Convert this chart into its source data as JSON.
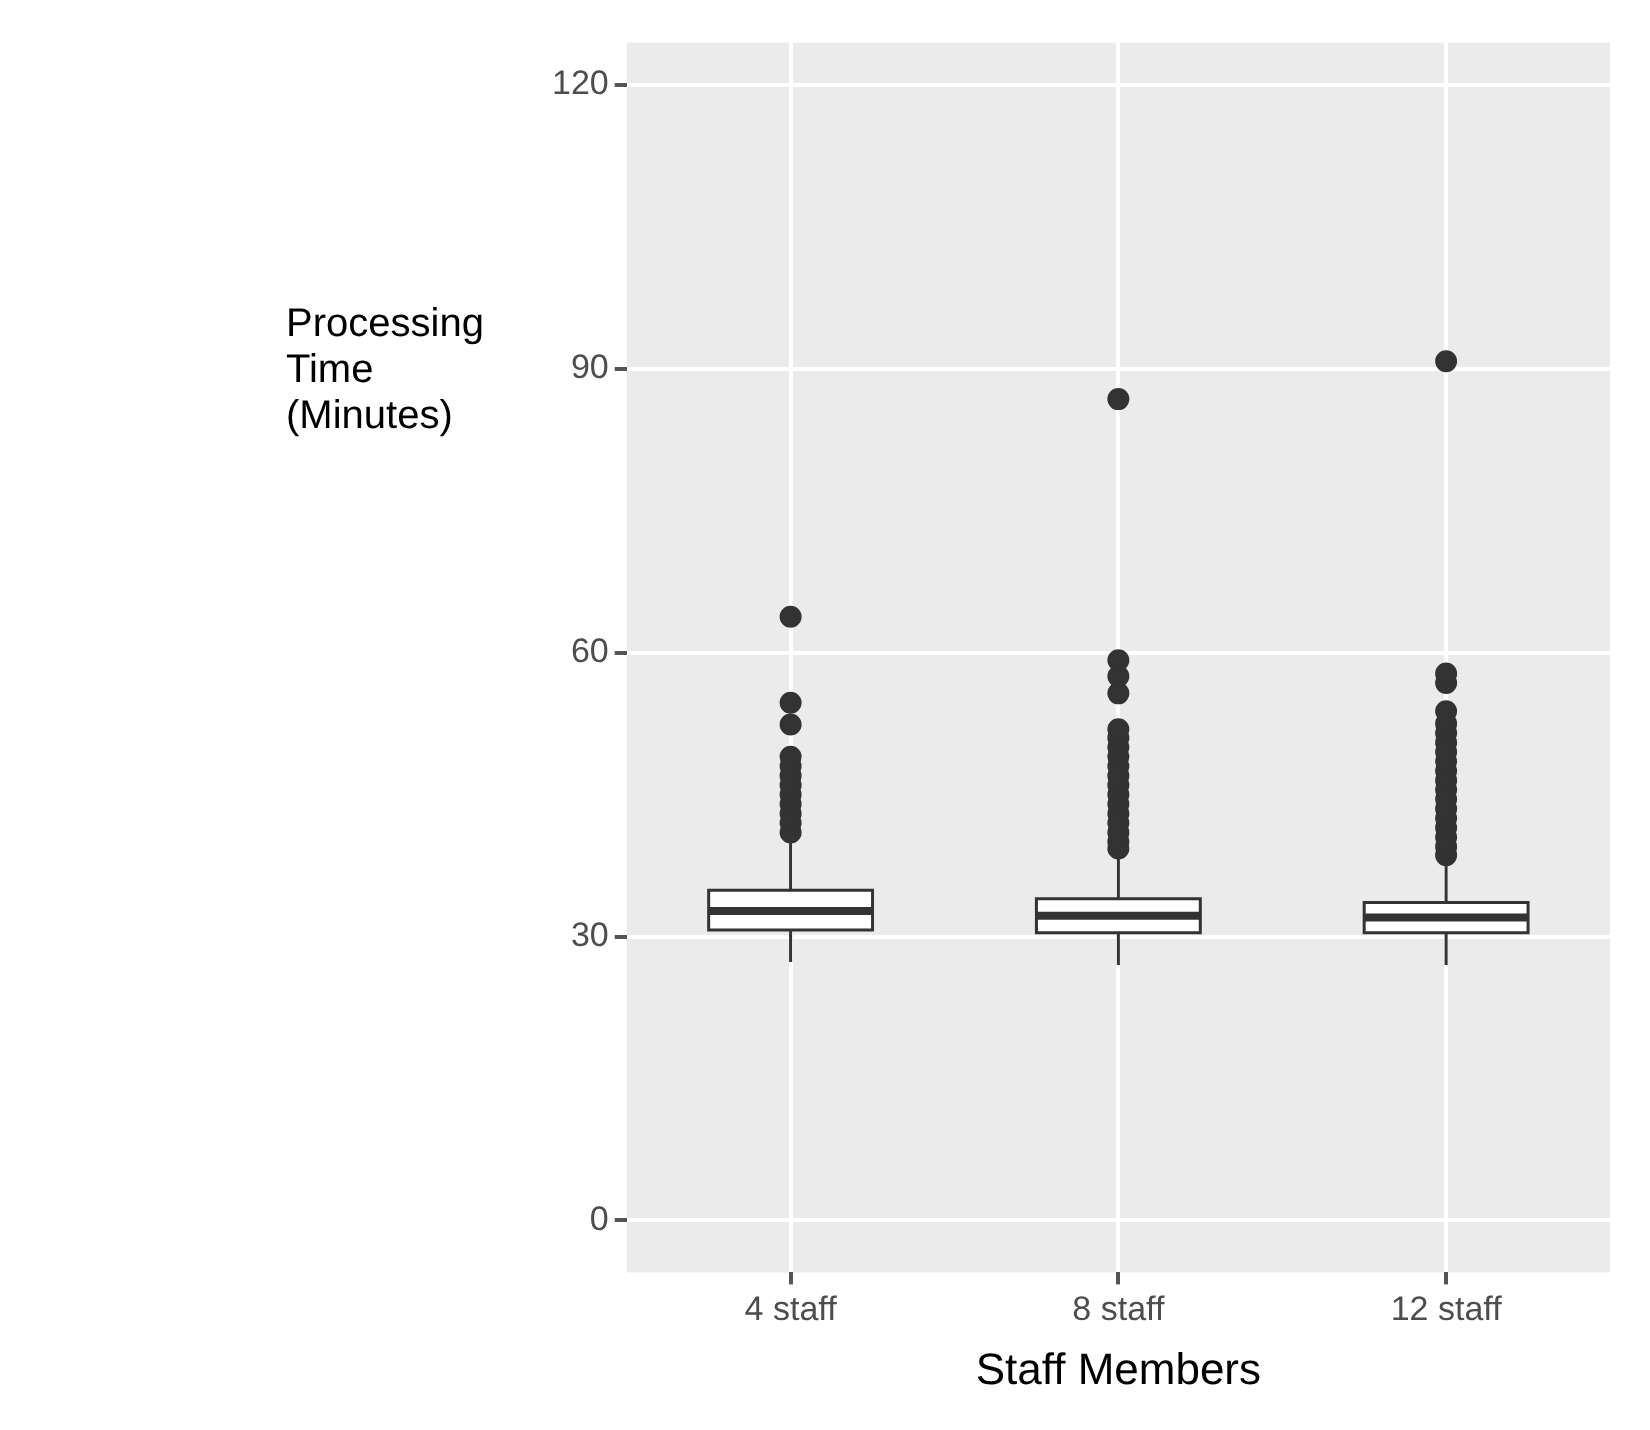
{
  "chart_data": {
    "type": "box",
    "xlabel": "Staff Members",
    "ylabel": "Processing\nTime\n(Minutes)",
    "categories": [
      "4 staff",
      "8 staff",
      "12 staff"
    ],
    "boxes": [
      {
        "low": 27.3,
        "q1": 30.7,
        "median": 32.7,
        "q3": 34.9,
        "high": 40.3,
        "outliers": [
          41,
          42,
          43,
          44,
          45,
          46,
          47,
          48,
          49,
          52.4,
          54.7,
          63.8
        ]
      },
      {
        "low": 27,
        "q1": 30.4,
        "median": 32.2,
        "q3": 34.0,
        "high": 38.6,
        "outliers": [
          39.3,
          40,
          41,
          42,
          43,
          44,
          45,
          46,
          47,
          48,
          49,
          50,
          51,
          51.9,
          55.7,
          57.5,
          59.2,
          86.8
        ]
      },
      {
        "low": 27,
        "q1": 30.4,
        "median": 32.0,
        "q3": 33.6,
        "high": 37.5,
        "outliers": [
          38.6,
          39.5,
          40.5,
          41.5,
          42.5,
          43.5,
          44.5,
          45.5,
          46.5,
          47.5,
          48.5,
          49.5,
          50.5,
          51.5,
          52.5,
          53.8,
          56.8,
          57.8,
          90.8
        ]
      }
    ],
    "ylim": [
      -5.5,
      124.5
    ],
    "yticks": [
      0,
      30,
      60,
      90,
      120
    ],
    "grid": true,
    "marker": "circle"
  }
}
